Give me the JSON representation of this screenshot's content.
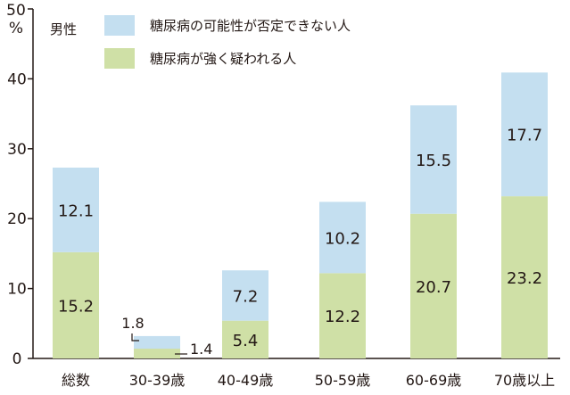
{
  "chart_data": {
    "type": "bar",
    "stacked": true,
    "title": "",
    "subtitle": "",
    "ylabel_top": "50",
    "ylabel_unit": "%",
    "ylim": [
      0,
      50
    ],
    "yticks": [
      0,
      10,
      20,
      30,
      40
    ],
    "grid": false,
    "legend_position": "top-left",
    "legend_title": "男性",
    "categories": [
      "総数",
      "30-39歳",
      "40-49歳",
      "50-59歳",
      "60-69歳",
      "70歳以上"
    ],
    "series": [
      {
        "name": "糖尿病が強く疑われる人",
        "color": "#cfe0a6",
        "values": [
          15.2,
          1.4,
          5.4,
          12.2,
          20.7,
          23.2
        ]
      },
      {
        "name": "糖尿病の可能性が否定できない人",
        "color": "#c4dff0",
        "values": [
          12.1,
          1.8,
          7.2,
          10.2,
          15.5,
          17.7
        ]
      }
    ],
    "data_labels": {
      "bottom": [
        "15.2",
        "1.4",
        "5.4",
        "12.2",
        "20.7",
        "23.2"
      ],
      "top": [
        "12.1",
        "1.8",
        "7.2",
        "10.2",
        "15.5",
        "17.7"
      ]
    }
  }
}
